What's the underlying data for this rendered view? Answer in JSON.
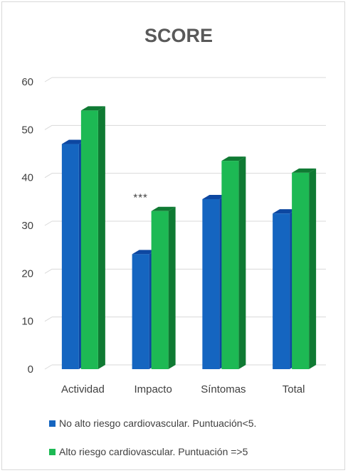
{
  "chart_data": {
    "type": "bar",
    "title": "SCORE",
    "categories": [
      "Actividad",
      "Impacto",
      "Síntomas",
      "Total"
    ],
    "series": [
      {
        "name": "No alto riesgo cardiovascular. Puntuación<5.",
        "values": [
          47,
          24,
          35.5,
          32.5
        ],
        "color": "#1565c0",
        "dark": "#0d47a1"
      },
      {
        "name": "Alto riesgo cardiovascular. Puntuación =>5",
        "values": [
          54,
          33,
          43.5,
          41
        ],
        "color": "#1db954",
        "dark": "#0f7a33"
      }
    ],
    "ylim": [
      0,
      60
    ],
    "yticks": [
      0,
      10,
      20,
      30,
      40,
      50,
      60
    ],
    "xlabel": "",
    "ylabel": "",
    "grid": true,
    "legend": "bottom",
    "annotations": [
      {
        "text": "***",
        "category": "Impacto"
      }
    ]
  }
}
